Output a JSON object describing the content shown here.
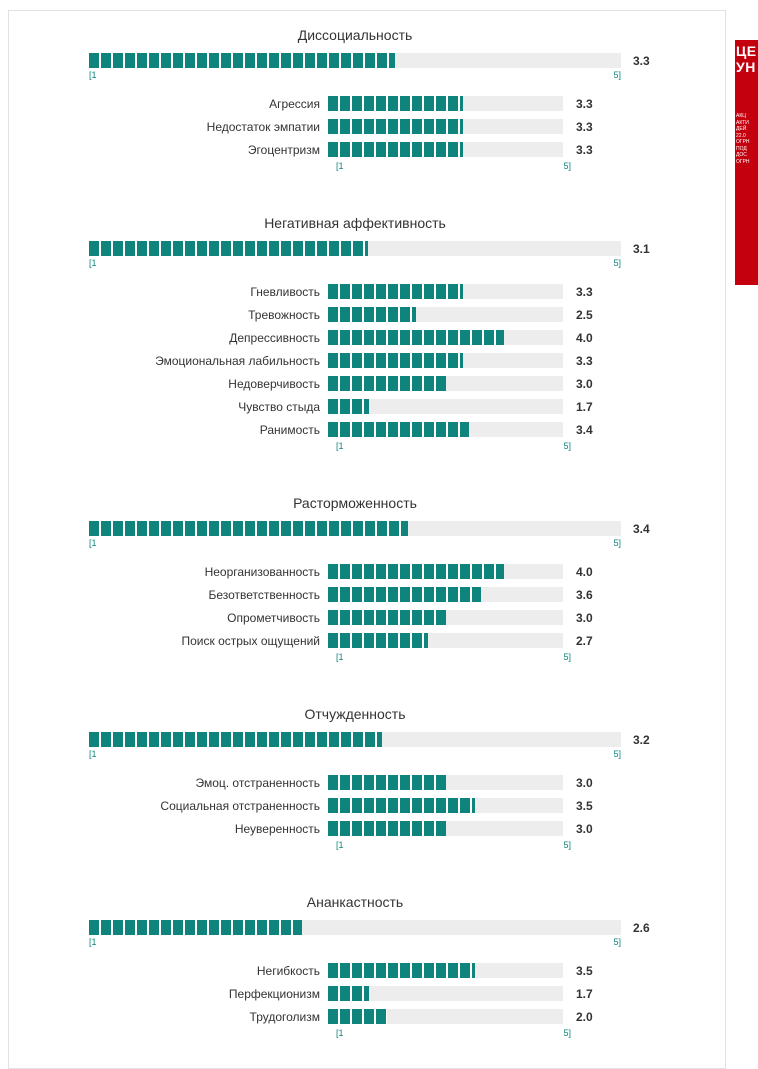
{
  "colors": {
    "accent": "#0e847c",
    "track": "#ededed",
    "ad_bg": "#c4000e",
    "value_text": "#333333"
  },
  "scale": {
    "min_label": "[1",
    "max_label": "5]",
    "min": 1,
    "max": 5
  },
  "chart_data": [
    {
      "type": "bar",
      "title": "Диссоциальность",
      "overall": "3.3",
      "xlim": [
        1,
        5
      ],
      "categories": [
        "Агрессия",
        "Недостаток эмпатии",
        "Эгоцентризм"
      ],
      "values": [
        "3.3",
        "3.3",
        "3.3"
      ]
    },
    {
      "type": "bar",
      "title": "Негативная аффективность",
      "overall": "3.1",
      "xlim": [
        1,
        5
      ],
      "categories": [
        "Гневливость",
        "Тревожность",
        "Депрессивность",
        "Эмоциональная лабильность",
        "Недоверчивость",
        "Чувство стыда",
        "Ранимость"
      ],
      "values": [
        "3.3",
        "2.5",
        "4.0",
        "3.3",
        "3.0",
        "1.7",
        "3.4"
      ]
    },
    {
      "type": "bar",
      "title": "Расторможенность",
      "overall": "3.4",
      "xlim": [
        1,
        5
      ],
      "categories": [
        "Неорганизованность",
        "Безответственность",
        "Опрометчивость",
        "Поиск острых ощущений"
      ],
      "values": [
        "4.0",
        "3.6",
        "3.0",
        "2.7"
      ]
    },
    {
      "type": "bar",
      "title": "Отчужденность",
      "overall": "3.2",
      "xlim": [
        1,
        5
      ],
      "categories": [
        "Эмоц. отстраненность",
        "Социальная отстраненность",
        "Неуверенность"
      ],
      "values": [
        "3.0",
        "3.5",
        "3.0"
      ]
    },
    {
      "type": "bar",
      "title": "Ананкастность",
      "overall": "2.6",
      "xlim": [
        1,
        5
      ],
      "categories": [
        "Негибкость",
        "Перфекционизм",
        "Трудоголизм"
      ],
      "values": [
        "3.5",
        "1.7",
        "2.0"
      ]
    }
  ],
  "ad": {
    "title_lines": [
      "ЦЕ",
      "УН"
    ],
    "small_lines": [
      "АКЦ",
      "АКТИ",
      "ДЕЙ",
      "22.0",
      "ОГРН",
      "ПОД",
      "ДОС",
      "ОГРН"
    ]
  }
}
